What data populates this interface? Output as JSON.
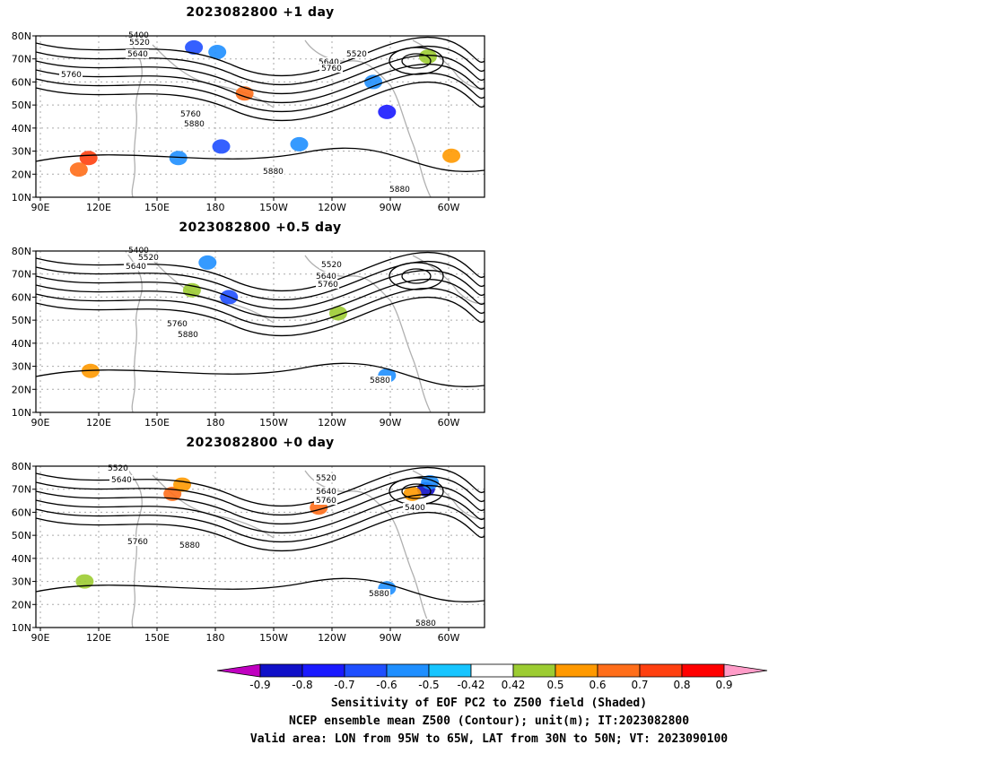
{
  "panels": [
    {
      "title": "2023082800  +1 day",
      "contour_labels": [
        "5400",
        "5520",
        "5640",
        "5760",
        "5520",
        "5640",
        "5760",
        "5760",
        "5880",
        "5880",
        "5880"
      ],
      "shading": [
        {
          "lon": 117,
          "lat": 27,
          "value": 0.8
        },
        {
          "lon": 112,
          "lat": 22,
          "value": 0.7
        },
        {
          "lon": 171,
          "lat": 75,
          "value": -0.6
        },
        {
          "lon": 183,
          "lat": 73,
          "value": -0.5
        },
        {
          "lon": 185,
          "lat": 32,
          "value": -0.6
        },
        {
          "lon": 163,
          "lat": 27,
          "value": -0.5
        },
        {
          "lon": 225,
          "lat": 33,
          "value": -0.5
        },
        {
          "lon": 270,
          "lat": 47,
          "value": -0.7
        },
        {
          "lon": 263,
          "lat": 60,
          "value": -0.5
        },
        {
          "lon": 291,
          "lat": 71,
          "value": 0.5
        },
        {
          "lon": 303,
          "lat": 28,
          "value": 0.6
        },
        {
          "lon": 197,
          "lat": 55,
          "value": 0.7
        }
      ]
    },
    {
      "title": "2023082800  +0.5 day",
      "contour_labels": [
        "5400",
        "5520",
        "5640",
        "5520",
        "5640",
        "5760",
        "5760",
        "5880",
        "5880"
      ],
      "shading": [
        {
          "lon": 178,
          "lat": 75,
          "value": -0.5
        },
        {
          "lon": 189,
          "lat": 60,
          "value": -0.6
        },
        {
          "lon": 118,
          "lat": 28,
          "value": 0.6
        },
        {
          "lon": 270,
          "lat": 26,
          "value": -0.5
        },
        {
          "lon": 245,
          "lat": 53,
          "value": 0.5
        },
        {
          "lon": 170,
          "lat": 63,
          "value": 0.5
        }
      ]
    },
    {
      "title": "2023082800  +0 day",
      "contour_labels": [
        "5520",
        "5640",
        "5520",
        "5640",
        "5760",
        "5400",
        "5760",
        "5880",
        "5880",
        "5880"
      ],
      "shading": [
        {
          "lon": 160,
          "lat": 68,
          "value": 0.7
        },
        {
          "lon": 165,
          "lat": 72,
          "value": 0.6
        },
        {
          "lon": 235,
          "lat": 62,
          "value": 0.7
        },
        {
          "lon": 290,
          "lat": 70,
          "value": -0.8
        },
        {
          "lon": 283,
          "lat": 68,
          "value": 0.6
        },
        {
          "lon": 292,
          "lat": 73,
          "value": -0.5
        },
        {
          "lon": 115,
          "lat": 30,
          "value": 0.5
        },
        {
          "lon": 270,
          "lat": 27,
          "value": -0.5
        }
      ]
    }
  ],
  "axes": {
    "lon_ticks": [
      "90E",
      "120E",
      "150E",
      "180",
      "150W",
      "120W",
      "90W",
      "60W"
    ],
    "lat_ticks": [
      "80N",
      "70N",
      "60N",
      "50N",
      "40N",
      "30N",
      "20N",
      "10N"
    ],
    "lon_range": [
      90,
      320
    ],
    "lat_range": [
      10,
      80
    ]
  },
  "colorbar": {
    "ticks": [
      "-0.9",
      "-0.8",
      "-0.7",
      "-0.6",
      "-0.5",
      "-0.42",
      "0.42",
      "0.5",
      "0.6",
      "0.7",
      "0.8",
      "0.9"
    ],
    "low_color": "#c000c0",
    "high_color": "#ff9cc8",
    "colors": [
      "#1010c8",
      "#1a1aff",
      "#1f4fff",
      "#1f8fff",
      "#17c5ff",
      "#ffffff",
      "#9ccc32",
      "#ff9900",
      "#ff6e1a",
      "#ff4010",
      "#ff0000"
    ]
  },
  "caption": {
    "line1": "Sensitivity of EOF PC2 to Z500 field (Shaded)",
    "line2": "NCEP ensemble mean Z500 (Contour); unit(m); IT:2023082800",
    "line3": "Valid area: LON from 95W to 65W, LAT from 30N to 50N; VT: 2023090100"
  }
}
